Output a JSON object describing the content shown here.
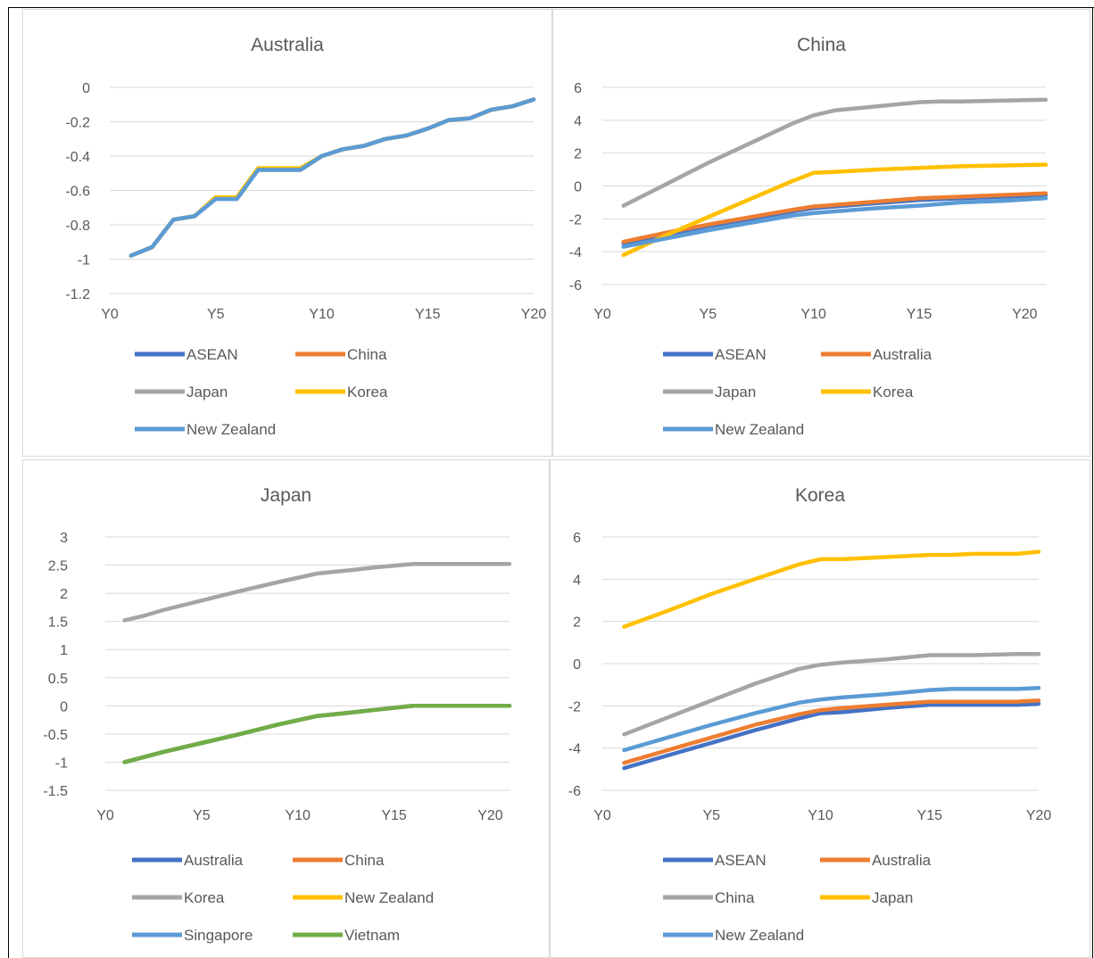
{
  "colors": {
    "ASEAN": "#4472c4",
    "China": "#ed7d31",
    "Australia": "#ed7d31",
    "Japan": "#a5a5a5",
    "Korea": "#ffc000",
    "Korea_in_Japan_chart": "#a5a5a5",
    "New Zealand": "#5b9bd5",
    "Singapore": "#5b9bd5",
    "Vietnam": "#70ad47",
    "grid": "#d9d9d9",
    "text": "#595959"
  },
  "chart_data": [
    {
      "type": "line",
      "title": "Australia",
      "xlabel": "",
      "ylabel": "",
      "xlim": [
        0,
        20
      ],
      "ylim": [
        -1.2,
        0
      ],
      "yticks": [
        0,
        -0.2,
        -0.4,
        -0.6,
        -0.8,
        -1,
        -1.2
      ],
      "ytick_labels": [
        "0",
        "-0.2",
        "-0.4",
        "-0.6",
        "-0.8",
        "-1",
        "-1.2"
      ],
      "xticks": [
        0,
        5,
        10,
        15,
        20
      ],
      "xtick_labels": [
        "Y0",
        "Y5",
        "Y10",
        "Y15",
        "Y20"
      ],
      "legend_position": "bottom",
      "x": [
        1,
        2,
        3,
        4,
        5,
        6,
        7,
        8,
        9,
        10,
        11,
        12,
        13,
        14,
        15,
        16,
        17,
        18,
        19,
        20
      ],
      "series": [
        {
          "name": "ASEAN",
          "color": "#4472c4",
          "values": [
            -0.98,
            -0.93,
            -0.77,
            -0.75,
            -0.64,
            -0.64,
            -0.48,
            -0.48,
            -0.48,
            -0.4,
            -0.36,
            -0.34,
            -0.3,
            -0.28,
            -0.24,
            -0.19,
            -0.18,
            -0.13,
            -0.11,
            -0.07
          ]
        },
        {
          "name": "China",
          "color": "#ed7d31",
          "values": [
            -0.98,
            -0.93,
            -0.77,
            -0.75,
            -0.64,
            -0.64,
            -0.48,
            -0.48,
            -0.48,
            -0.4,
            -0.36,
            -0.34,
            -0.3,
            -0.28,
            -0.24,
            -0.19,
            -0.18,
            -0.13,
            -0.11,
            -0.07
          ]
        },
        {
          "name": "Japan",
          "color": "#a5a5a5",
          "values": [
            -0.98,
            -0.93,
            -0.77,
            -0.75,
            -0.64,
            -0.64,
            -0.48,
            -0.48,
            -0.48,
            -0.4,
            -0.36,
            -0.34,
            -0.3,
            -0.28,
            -0.24,
            -0.19,
            -0.18,
            -0.13,
            -0.11,
            -0.07
          ]
        },
        {
          "name": "Korea",
          "color": "#ffc000",
          "values": [
            -0.98,
            -0.93,
            -0.77,
            -0.75,
            -0.64,
            -0.64,
            -0.47,
            -0.47,
            -0.47,
            -0.4,
            -0.36,
            -0.34,
            -0.3,
            -0.28,
            -0.24,
            -0.19,
            -0.18,
            -0.13,
            -0.11,
            -0.07
          ]
        },
        {
          "name": "New Zealand",
          "color": "#5b9bd5",
          "values": [
            -0.98,
            -0.93,
            -0.77,
            -0.75,
            -0.65,
            -0.65,
            -0.48,
            -0.48,
            -0.48,
            -0.4,
            -0.36,
            -0.34,
            -0.3,
            -0.28,
            -0.24,
            -0.19,
            -0.18,
            -0.13,
            -0.11,
            -0.07
          ]
        }
      ]
    },
    {
      "type": "line",
      "title": "China",
      "xlabel": "",
      "ylabel": "",
      "xlim": [
        0,
        21
      ],
      "ylim": [
        -6,
        6
      ],
      "yticks": [
        6,
        4,
        2,
        0,
        -2,
        -4,
        -6
      ],
      "ytick_labels": [
        "6",
        "4",
        "2",
        "0",
        "-2",
        "-4",
        "-6"
      ],
      "xticks": [
        0,
        5,
        10,
        15,
        20
      ],
      "xtick_labels": [
        "Y0",
        "Y5",
        "Y10",
        "Y15",
        "Y20"
      ],
      "legend_position": "bottom",
      "x": [
        1,
        3,
        5,
        7,
        9,
        10,
        11,
        13,
        15,
        16,
        17,
        19,
        21
      ],
      "series": [
        {
          "name": "ASEAN",
          "color": "#4472c4",
          "values": [
            -3.5,
            -2.95,
            -2.45,
            -2.0,
            -1.55,
            -1.35,
            -1.25,
            -1.05,
            -0.85,
            -0.8,
            -0.75,
            -0.65,
            -0.55
          ]
        },
        {
          "name": "Australia",
          "color": "#ed7d31",
          "values": [
            -3.4,
            -2.85,
            -2.35,
            -1.9,
            -1.45,
            -1.25,
            -1.15,
            -0.95,
            -0.75,
            -0.7,
            -0.65,
            -0.55,
            -0.45
          ]
        },
        {
          "name": "Japan",
          "color": "#a5a5a5",
          "values": [
            -1.2,
            0.1,
            1.4,
            2.6,
            3.8,
            4.3,
            4.6,
            4.85,
            5.1,
            5.15,
            5.15,
            5.2,
            5.25
          ]
        },
        {
          "name": "Korea",
          "color": "#ffc000",
          "values": [
            -4.2,
            -3.0,
            -1.9,
            -0.8,
            0.3,
            0.8,
            0.85,
            1.0,
            1.1,
            1.15,
            1.2,
            1.25,
            1.3
          ]
        },
        {
          "name": "New Zealand",
          "color": "#5b9bd5",
          "values": [
            -3.7,
            -3.2,
            -2.7,
            -2.25,
            -1.8,
            -1.65,
            -1.55,
            -1.35,
            -1.2,
            -1.1,
            -1.0,
            -0.9,
            -0.75
          ]
        }
      ]
    },
    {
      "type": "line",
      "title": "Japan",
      "xlabel": "",
      "ylabel": "",
      "xlim": [
        0,
        21
      ],
      "ylim": [
        -1.5,
        3
      ],
      "yticks": [
        3,
        2.5,
        2,
        1.5,
        1,
        0.5,
        0,
        -0.5,
        -1,
        -1.5
      ],
      "ytick_labels": [
        "3",
        "2.5",
        "2",
        "1.5",
        "1",
        "0.5",
        "0",
        "-0.5",
        "-1",
        "-1.5"
      ],
      "xticks": [
        0,
        5,
        10,
        15,
        20
      ],
      "xtick_labels": [
        "Y0",
        "Y5",
        "Y10",
        "Y15",
        "Y20"
      ],
      "legend_position": "bottom",
      "x": [
        1,
        2,
        3,
        5,
        7,
        9,
        11,
        13,
        14,
        16,
        18,
        20,
        21
      ],
      "series": [
        {
          "name": "Australia",
          "color": "#4472c4",
          "values": [
            -1.0,
            -0.91,
            -0.82,
            -0.66,
            -0.5,
            -0.33,
            -0.18,
            -0.11,
            -0.07,
            0.0,
            0.0,
            0.0,
            0.0
          ]
        },
        {
          "name": "China",
          "color": "#ed7d31",
          "values": [
            -1.0,
            -0.91,
            -0.82,
            -0.66,
            -0.5,
            -0.33,
            -0.18,
            -0.11,
            -0.07,
            0.0,
            0.0,
            0.0,
            0.0
          ]
        },
        {
          "name": "Korea",
          "color": "#a5a5a5",
          "values": [
            1.52,
            1.6,
            1.7,
            1.87,
            2.04,
            2.2,
            2.35,
            2.42,
            2.46,
            2.52,
            2.52,
            2.52,
            2.52
          ]
        },
        {
          "name": "New Zealand",
          "color": "#ffc000",
          "values": [
            -1.0,
            -0.91,
            -0.82,
            -0.66,
            -0.5,
            -0.33,
            -0.18,
            -0.11,
            -0.07,
            0.0,
            0.0,
            0.0,
            0.0
          ]
        },
        {
          "name": "Singapore",
          "color": "#5b9bd5",
          "values": [
            -1.0,
            -0.91,
            -0.82,
            -0.66,
            -0.5,
            -0.33,
            -0.18,
            -0.11,
            -0.07,
            0.0,
            0.0,
            0.0,
            0.0
          ]
        },
        {
          "name": "Vietnam",
          "color": "#70ad47",
          "values": [
            -1.0,
            -0.91,
            -0.82,
            -0.66,
            -0.5,
            -0.33,
            -0.18,
            -0.11,
            -0.07,
            0.0,
            0.0,
            0.0,
            0.0
          ]
        }
      ]
    },
    {
      "type": "line",
      "title": "Korea",
      "xlabel": "",
      "ylabel": "",
      "xlim": [
        0,
        20
      ],
      "ylim": [
        -6,
        6
      ],
      "yticks": [
        6,
        4,
        2,
        0,
        -2,
        -4,
        -6
      ],
      "ytick_labels": [
        "6",
        "4",
        "2",
        "0",
        "-2",
        "-4",
        "-6"
      ],
      "xticks": [
        0,
        5,
        10,
        15,
        20
      ],
      "xtick_labels": [
        "Y0",
        "Y5",
        "Y10",
        "Y15",
        "Y20"
      ],
      "legend_position": "bottom",
      "x": [
        1,
        3,
        5,
        7,
        9,
        10,
        11,
        13,
        15,
        16,
        17,
        19,
        20
      ],
      "series": [
        {
          "name": "ASEAN",
          "color": "#4472c4",
          "values": [
            -4.95,
            -4.35,
            -3.75,
            -3.15,
            -2.6,
            -2.35,
            -2.3,
            -2.1,
            -1.95,
            -1.95,
            -1.95,
            -1.95,
            -1.9
          ]
        },
        {
          "name": "Australia",
          "color": "#ed7d31",
          "values": [
            -4.7,
            -4.1,
            -3.5,
            -2.9,
            -2.4,
            -2.2,
            -2.1,
            -1.95,
            -1.8,
            -1.8,
            -1.8,
            -1.8,
            -1.75
          ]
        },
        {
          "name": "China",
          "color": "#a5a5a5",
          "values": [
            -3.35,
            -2.55,
            -1.75,
            -0.95,
            -0.25,
            -0.05,
            0.05,
            0.2,
            0.4,
            0.4,
            0.4,
            0.45,
            0.45
          ]
        },
        {
          "name": "Japan",
          "color": "#ffc000",
          "values": [
            1.75,
            2.5,
            3.3,
            4.0,
            4.7,
            4.95,
            4.95,
            5.05,
            5.15,
            5.15,
            5.2,
            5.2,
            5.3
          ]
        },
        {
          "name": "New Zealand",
          "color": "#5b9bd5",
          "values": [
            -4.1,
            -3.5,
            -2.9,
            -2.35,
            -1.85,
            -1.7,
            -1.6,
            -1.45,
            -1.25,
            -1.2,
            -1.2,
            -1.2,
            -1.15
          ]
        }
      ]
    }
  ]
}
